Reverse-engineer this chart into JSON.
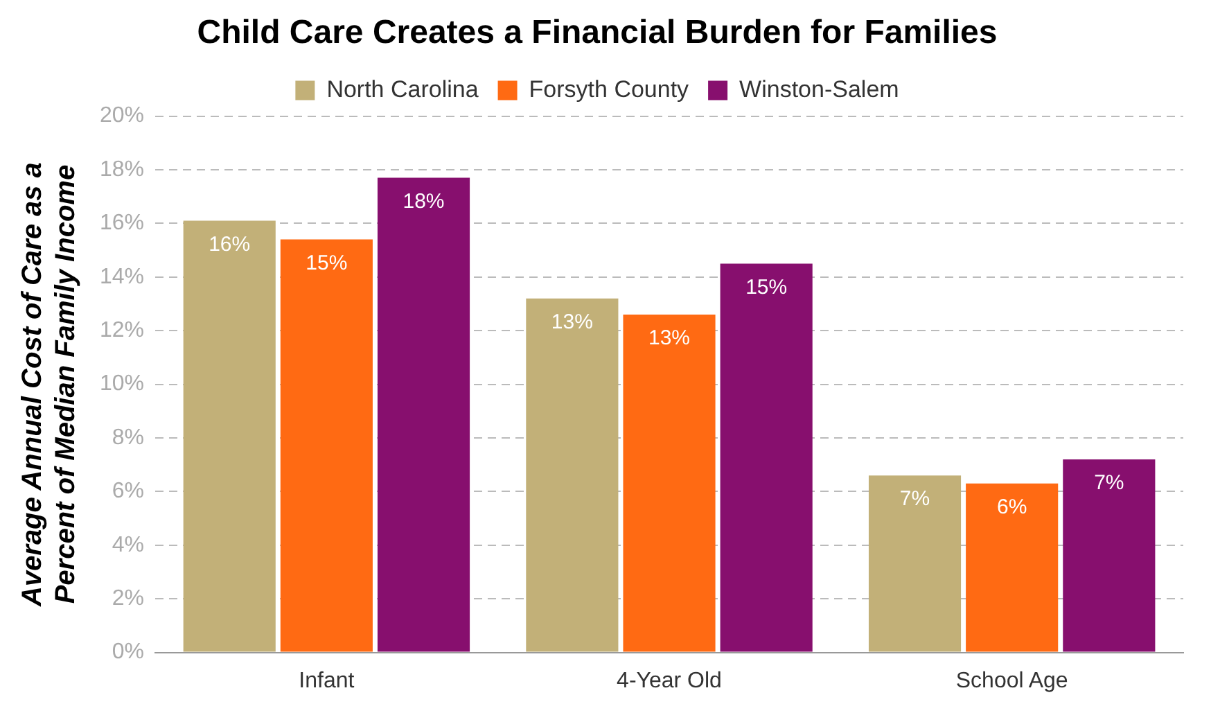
{
  "chart_data": {
    "type": "bar",
    "title": "Child Care Creates a Financial Burden for Families",
    "ylabel": "Average Annual Cost of Care as a Percent of Median Family Income",
    "categories": [
      "Infant",
      "4-Year Old",
      "School Age"
    ],
    "series": [
      {
        "name": "North Carolina",
        "color": "#c2b078",
        "values": [
          16.1,
          13.2,
          6.6
        ],
        "value_labels": [
          "16%",
          "13%",
          "7%"
        ]
      },
      {
        "name": "Forsyth County",
        "color": "#ff6a13",
        "values": [
          15.4,
          12.6,
          6.3
        ],
        "value_labels": [
          "15%",
          "13%",
          "6%"
        ]
      },
      {
        "name": "Winston-Salem",
        "color": "#870f6e",
        "values": [
          17.7,
          14.5,
          7.2
        ],
        "value_labels": [
          "18%",
          "15%",
          "7%"
        ]
      }
    ],
    "ylim": [
      0,
      20
    ],
    "yticks": [
      {
        "value": 0,
        "label": "0%"
      },
      {
        "value": 2,
        "label": "2%"
      },
      {
        "value": 4,
        "label": "4%"
      },
      {
        "value": 6,
        "label": "6%"
      },
      {
        "value": 8,
        "label": "8%"
      },
      {
        "value": 10,
        "label": "10%"
      },
      {
        "value": 12,
        "label": "12%"
      },
      {
        "value": 14,
        "label": "14%"
      },
      {
        "value": 16,
        "label": "16%"
      },
      {
        "value": 18,
        "label": "18%"
      },
      {
        "value": 20,
        "label": "20%"
      }
    ],
    "grid": "y",
    "legend": "top"
  }
}
